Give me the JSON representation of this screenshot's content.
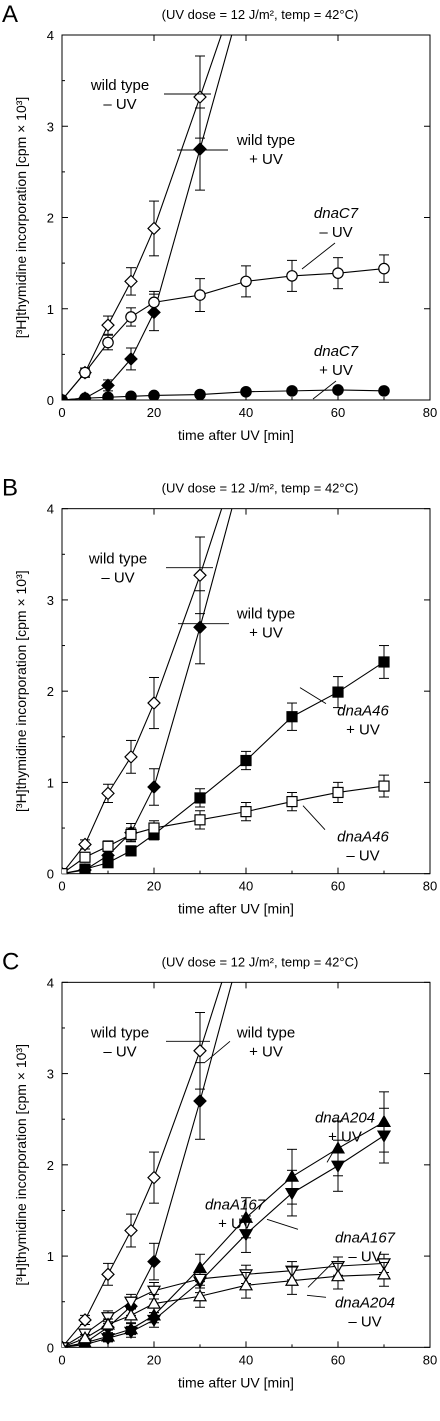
{
  "chart_data": [
    {
      "type": "line",
      "panel_label": "A",
      "title": "(UV dose = 12 J/m², temp = 42°C)",
      "xlabel": "time after UV [min]",
      "ylabel": "[³H]thymidine incorporation [cpm × 10³]",
      "xlim": [
        0,
        80
      ],
      "ylim": [
        0,
        4
      ],
      "xticks": [
        "0",
        "20",
        "40",
        "60",
        "80"
      ],
      "yticks": [
        "0",
        "1",
        "2",
        "3",
        "4"
      ],
      "grid": false,
      "legend": "none",
      "annotations": [
        {
          "line1": "wild type",
          "line2": "– UV",
          "italic": false
        },
        {
          "line1": "wild type",
          "line2": "+ UV",
          "italic": false
        },
        {
          "line1": "dnaC7",
          "line2": "– UV",
          "italic": true
        },
        {
          "line1": "dnaC7",
          "line2": "+ UV",
          "italic": true
        }
      ],
      "series": [
        {
          "marker": "diamond-open",
          "x": [
            0,
            5,
            10,
            15,
            20,
            30,
            36
          ],
          "y": [
            0,
            0.3,
            0.82,
            1.3,
            1.88,
            3.32,
            4.2
          ],
          "err": [
            0.02,
            0.05,
            0.1,
            0.15,
            0.3,
            0.45,
            null
          ]
        },
        {
          "marker": "diamond-filled",
          "x": [
            0,
            5,
            10,
            15,
            20,
            30,
            38
          ],
          "y": [
            0,
            0.02,
            0.16,
            0.45,
            0.96,
            2.75,
            4.2
          ],
          "err": [
            0.02,
            0.02,
            0.06,
            0.12,
            0.2,
            0.45,
            null
          ]
        },
        {
          "marker": "circle-open",
          "x": [
            0,
            5,
            10,
            15,
            20,
            30,
            40,
            50,
            60,
            70
          ],
          "y": [
            0,
            0.3,
            0.63,
            0.91,
            1.07,
            1.15,
            1.3,
            1.36,
            1.39,
            1.44
          ],
          "err": [
            0.02,
            0.05,
            0.08,
            0.1,
            0.12,
            0.18,
            0.17,
            0.17,
            0.17,
            0.15
          ]
        },
        {
          "marker": "circle-filled",
          "x": [
            0,
            5,
            10,
            15,
            20,
            30,
            40,
            50,
            60,
            70
          ],
          "y": [
            0,
            0.02,
            0.03,
            0.04,
            0.05,
            0.06,
            0.09,
            0.1,
            0.11,
            0.1
          ],
          "err": [
            0.02,
            0.02,
            0.02,
            0.02,
            0.02,
            0.03,
            0.03,
            0.03,
            0.03,
            0.03
          ]
        }
      ]
    },
    {
      "type": "line",
      "panel_label": "B",
      "title": "(UV dose = 12 J/m², temp = 42°C)",
      "xlabel": "time after UV [min]",
      "ylabel": "[³H]thymidine incorporation [cpm × 10³]",
      "xlim": [
        0,
        80
      ],
      "ylim": [
        0,
        4
      ],
      "xticks": [
        "0",
        "20",
        "40",
        "60",
        "80"
      ],
      "yticks": [
        "0",
        "1",
        "2",
        "3",
        "4"
      ],
      "grid": false,
      "legend": "none",
      "annotations": [
        {
          "line1": "wild type",
          "line2": "– UV",
          "italic": false
        },
        {
          "line1": "wild type",
          "line2": "+ UV",
          "italic": false
        },
        {
          "line1": "dnaA46",
          "line2": "+ UV",
          "italic": true
        },
        {
          "line1": "dnaA46",
          "line2": "– UV",
          "italic": true
        }
      ],
      "series": [
        {
          "marker": "diamond-open",
          "x": [
            0,
            5,
            10,
            15,
            20,
            30,
            36
          ],
          "y": [
            0,
            0.32,
            0.88,
            1.28,
            1.87,
            3.27,
            4.2
          ],
          "err": [
            0.02,
            0.05,
            0.1,
            0.18,
            0.28,
            0.42,
            null
          ]
        },
        {
          "marker": "diamond-filled",
          "x": [
            0,
            5,
            10,
            15,
            20,
            30,
            38
          ],
          "y": [
            0,
            0.04,
            0.2,
            0.45,
            0.95,
            2.7,
            4.2
          ],
          "err": [
            0.02,
            0.03,
            0.06,
            0.1,
            0.2,
            0.4,
            null
          ]
        },
        {
          "marker": "square-filled",
          "x": [
            0,
            5,
            10,
            15,
            20,
            30,
            40,
            50,
            60,
            70
          ],
          "y": [
            0,
            0.05,
            0.12,
            0.25,
            0.43,
            0.83,
            1.24,
            1.72,
            1.99,
            2.32
          ],
          "err": [
            0.02,
            0.03,
            0.04,
            0.05,
            0.06,
            0.1,
            0.1,
            0.15,
            0.17,
            0.18
          ]
        },
        {
          "marker": "square-open",
          "x": [
            0,
            5,
            10,
            15,
            20,
            30,
            40,
            50,
            60,
            70
          ],
          "y": [
            0,
            0.18,
            0.3,
            0.43,
            0.5,
            0.59,
            0.68,
            0.79,
            0.89,
            0.96
          ],
          "err": [
            0.02,
            0.05,
            0.06,
            0.07,
            0.08,
            0.1,
            0.1,
            0.1,
            0.11,
            0.12
          ]
        }
      ]
    },
    {
      "type": "line",
      "panel_label": "C",
      "title": "(UV dose = 12 J/m², temp = 42°C)",
      "xlabel": "time after UV [min]",
      "ylabel": "[³H]thymidine incorporation [cpm × 10³]",
      "xlim": [
        0,
        80
      ],
      "ylim": [
        0,
        4
      ],
      "xticks": [
        "0",
        "20",
        "40",
        "60",
        "80"
      ],
      "yticks": [
        "0",
        "1",
        "2",
        "3",
        "4"
      ],
      "grid": false,
      "legend": "none",
      "annotations": [
        {
          "line1": "wild type",
          "line2": "– UV",
          "italic": false
        },
        {
          "line1": "wild type",
          "line2": "+ UV",
          "italic": false
        },
        {
          "line1": "dnaA204",
          "line2": "+ UV",
          "italic": true
        },
        {
          "line1": "dnaA167",
          "line2": "+ UV",
          "italic": true
        },
        {
          "line1": "dnaA167",
          "line2": "– UV",
          "italic": true
        },
        {
          "line1": "dnaA204",
          "line2": "– UV",
          "italic": true
        }
      ],
      "series": [
        {
          "marker": "diamond-open",
          "x": [
            0,
            5,
            10,
            15,
            20,
            30,
            36
          ],
          "y": [
            0,
            0.3,
            0.8,
            1.28,
            1.86,
            3.25,
            4.2
          ],
          "err": [
            0.02,
            0.05,
            0.12,
            0.18,
            0.28,
            0.42,
            null
          ]
        },
        {
          "marker": "diamond-filled",
          "x": [
            0,
            5,
            10,
            15,
            20,
            30,
            38
          ],
          "y": [
            0,
            0.05,
            0.22,
            0.45,
            0.94,
            2.7,
            4.2
          ],
          "err": [
            0.02,
            0.03,
            0.06,
            0.1,
            0.2,
            0.42,
            null
          ]
        },
        {
          "marker": "triangle-up-filled",
          "x": [
            0,
            5,
            10,
            15,
            20,
            30,
            40,
            50,
            60,
            70
          ],
          "y": [
            0,
            0.05,
            0.12,
            0.2,
            0.35,
            0.87,
            1.42,
            1.87,
            2.18,
            2.47
          ],
          "err": [
            0.02,
            0.03,
            0.04,
            0.06,
            0.08,
            0.15,
            0.22,
            0.3,
            0.3,
            0.33
          ]
        },
        {
          "marker": "triangle-down-filled",
          "x": [
            0,
            5,
            10,
            15,
            20,
            30,
            40,
            50,
            60,
            70
          ],
          "y": [
            0,
            0.03,
            0.1,
            0.17,
            0.3,
            0.72,
            1.24,
            1.69,
            1.99,
            2.32
          ],
          "err": [
            0.02,
            0.03,
            0.04,
            0.06,
            0.08,
            0.12,
            0.2,
            0.25,
            0.28,
            0.3
          ]
        },
        {
          "marker": "triangle-down-open",
          "x": [
            0,
            5,
            10,
            15,
            20,
            30,
            40,
            50,
            60,
            70
          ],
          "y": [
            0,
            0.15,
            0.33,
            0.5,
            0.62,
            0.75,
            0.8,
            0.84,
            0.89,
            0.92
          ],
          "err": [
            0.02,
            0.05,
            0.07,
            0.08,
            0.09,
            0.1,
            0.1,
            0.1,
            0.1,
            0.1
          ]
        },
        {
          "marker": "triangle-up-open",
          "x": [
            0,
            5,
            10,
            15,
            20,
            30,
            40,
            50,
            60,
            70
          ],
          "y": [
            0,
            0.1,
            0.25,
            0.35,
            0.48,
            0.56,
            0.68,
            0.73,
            0.78,
            0.8
          ],
          "err": [
            0.02,
            0.04,
            0.06,
            0.08,
            0.1,
            0.12,
            0.14,
            0.15,
            0.14,
            0.13
          ]
        }
      ]
    }
  ]
}
